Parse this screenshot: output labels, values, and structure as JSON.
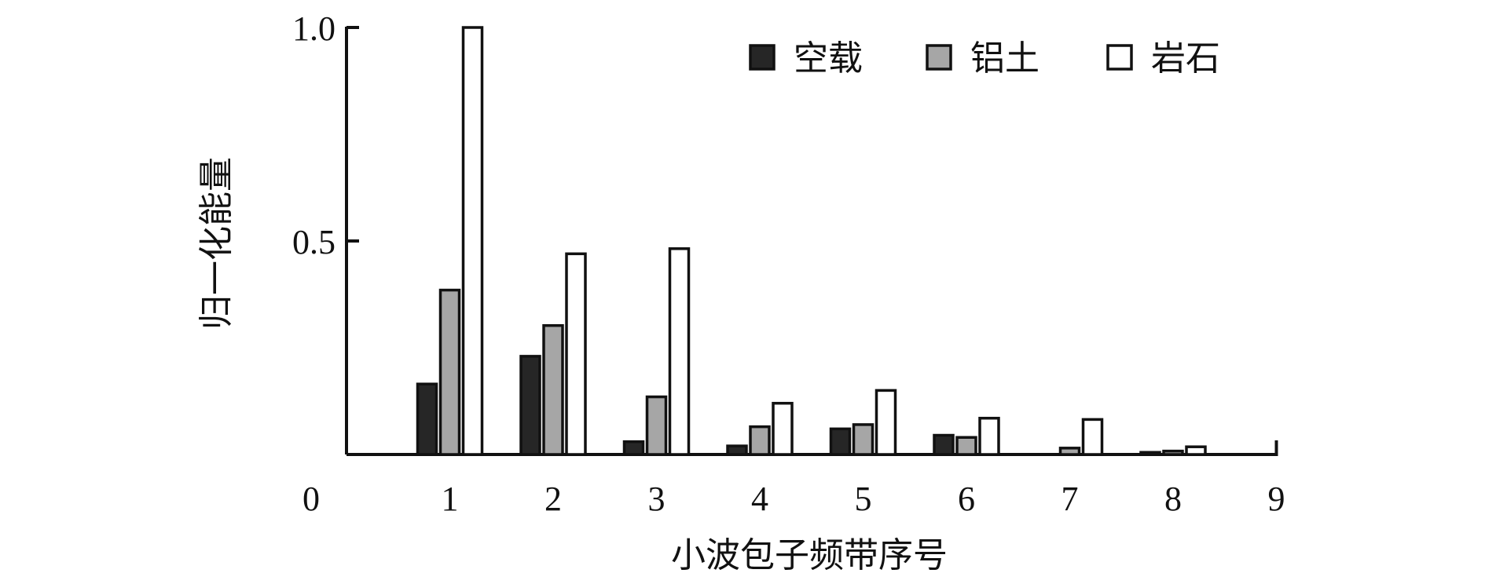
{
  "chart_data": {
    "type": "bar",
    "categories": [
      "1",
      "2",
      "3",
      "4",
      "5",
      "6",
      "7",
      "8"
    ],
    "x_ticks": [
      "0",
      "1",
      "2",
      "3",
      "4",
      "5",
      "6",
      "7",
      "8",
      "9"
    ],
    "y_ticks": [
      "1.0",
      "0.5"
    ],
    "xlabel": "小波包子频带序号",
    "ylabel": "归一化能量",
    "xlim": [
      0,
      9
    ],
    "ylim": [
      0,
      1.0
    ],
    "grid": false,
    "legend_position": "top-right",
    "series": [
      {
        "name": "空载",
        "color": "#262626",
        "values": [
          0.165,
          0.23,
          0.03,
          0.02,
          0.06,
          0.045,
          0.0,
          0.005
        ]
      },
      {
        "name": "铝土",
        "color": "#a6a6a6",
        "values": [
          0.385,
          0.302,
          0.135,
          0.065,
          0.07,
          0.04,
          0.015,
          0.008
        ]
      },
      {
        "name": "岩石",
        "color": "#ffffff",
        "values": [
          1.0,
          0.47,
          0.482,
          0.12,
          0.15,
          0.085,
          0.082,
          0.018
        ]
      }
    ]
  }
}
